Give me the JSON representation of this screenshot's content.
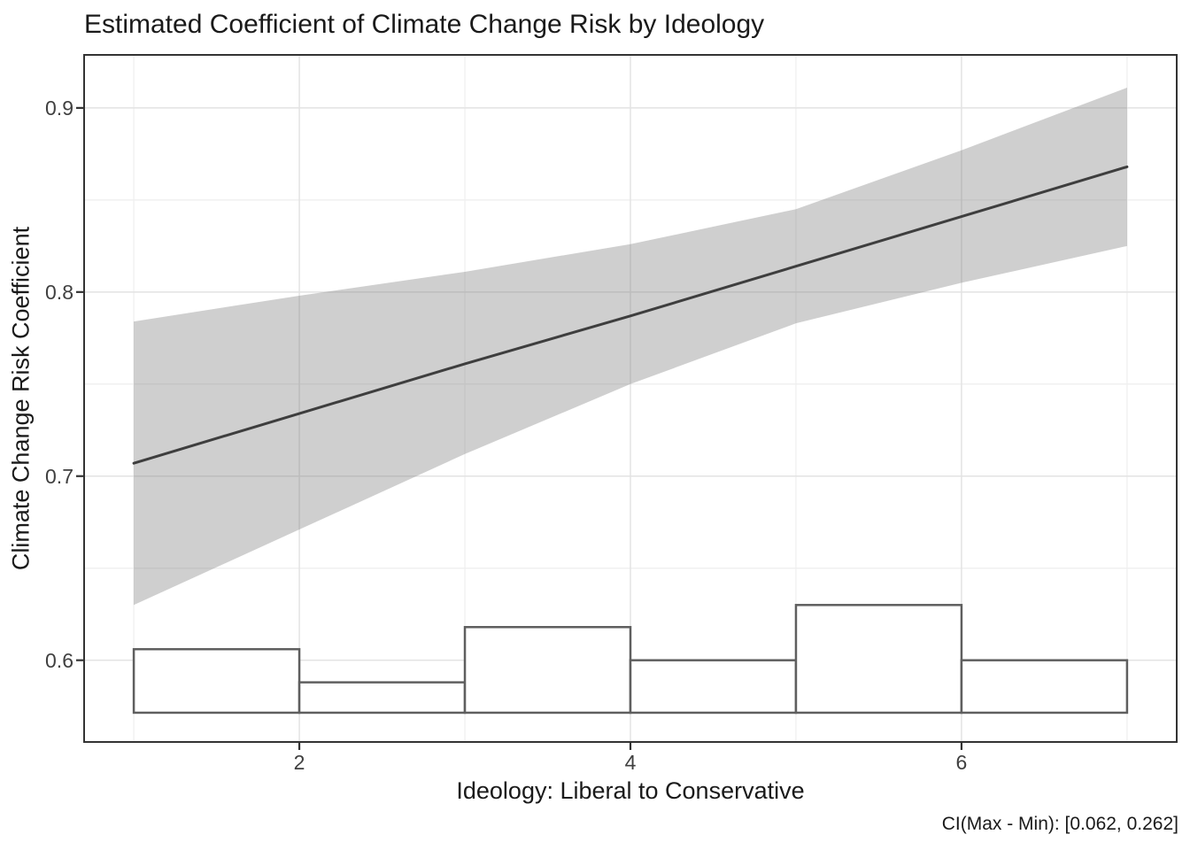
{
  "chart_data": {
    "type": "line",
    "title": "Estimated Coefficient of Climate Change Risk by Ideology",
    "xlabel": "Ideology: Liberal to Conservative",
    "ylabel": "Climate Change Risk Coefficient",
    "caption": "CI(Max - Min): [0.062, 0.262]",
    "grid": "on",
    "legend_position": "none",
    "x_axis": {
      "range": [
        0.7,
        7.3
      ],
      "major_ticks": [
        2,
        4,
        6
      ],
      "major_tick_labels": [
        "2",
        "4",
        "6"
      ],
      "minor_gridlines": [
        1,
        3,
        5,
        7
      ]
    },
    "y_axis": {
      "range": [
        0.5556,
        0.9288
      ],
      "major_ticks": [
        0.6,
        0.7,
        0.8,
        0.9
      ],
      "major_tick_labels": [
        "0.6",
        "0.7",
        "0.8",
        "0.9"
      ],
      "minor_gridlines": [
        0.65,
        0.75,
        0.85
      ]
    },
    "series": [
      {
        "name": "regression-line",
        "type": "line",
        "x": [
          1,
          2,
          3,
          4,
          5,
          6,
          7
        ],
        "y": [
          0.707,
          0.734,
          0.761,
          0.787,
          0.814,
          0.841,
          0.868
        ]
      }
    ],
    "confidence_band": {
      "x": [
        1,
        2,
        3,
        4,
        5,
        6,
        7
      ],
      "upper": [
        0.784,
        0.798,
        0.811,
        0.826,
        0.845,
        0.877,
        0.911
      ],
      "lower": [
        0.63,
        0.671,
        0.712,
        0.75,
        0.783,
        0.805,
        0.825
      ]
    },
    "histogram": {
      "bin_edges": [
        1,
        2,
        3,
        4,
        5,
        6,
        7
      ],
      "bar_tops": [
        0.606,
        0.588,
        0.618,
        0.6,
        0.63,
        0.6
      ],
      "base": 0.5715
    },
    "colors": {
      "regression_line": "#3e3e3e",
      "band_fill": "#757575",
      "band_opacity": 0.35,
      "histogram_stroke": "#5f5f5f",
      "histogram_fill": "#ffffff",
      "grid_major": "#e3e3e3",
      "grid_minor": "#eeeeee",
      "panel_border": "#333333",
      "tick_mark": "#333333",
      "axis_text": "#404040",
      "title_text": "#1a1a1a"
    }
  }
}
